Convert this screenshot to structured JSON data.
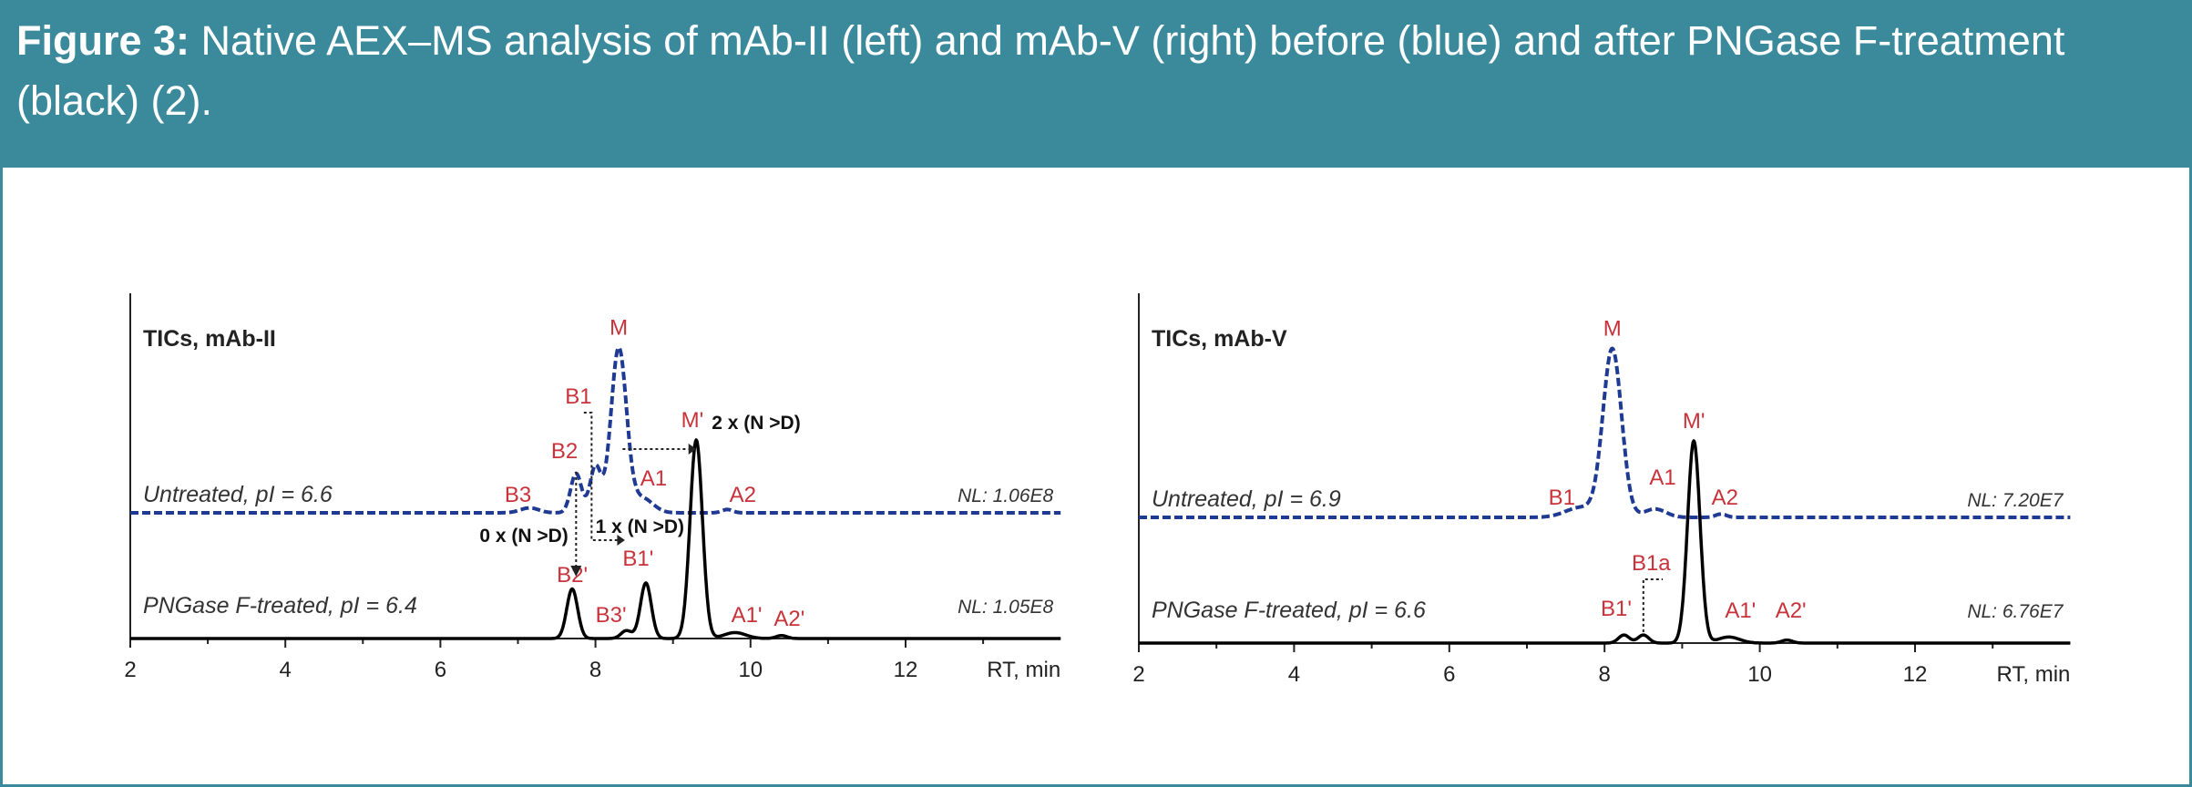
{
  "figure": {
    "label": "Figure 3:",
    "caption": " Native AEX–MS analysis of mAb-II (left) and mAb-V (right) before (blue) and after PNGase F-treatment (black) (2).",
    "accent_color": "#3b8a9c"
  },
  "chart_data": [
    {
      "type": "line",
      "title": "TICs, mAb-II",
      "xlabel": "RT, min",
      "xlim": [
        2,
        14
      ],
      "xticks": [
        "2",
        "4",
        "6",
        "8",
        "10",
        "12"
      ],
      "series": [
        {
          "name": "Untreated, pI = 6.6",
          "normalization": "NL: 1.06E8",
          "color": "#1f3a93",
          "style": "dashed",
          "peaks": [
            {
              "label": "M",
              "rt": 8.3,
              "rel_intensity": 100
            },
            {
              "label": "B1",
              "rt": 8.0,
              "rel_intensity": 28
            },
            {
              "label": "B2",
              "rt": 7.75,
              "rel_intensity": 24
            },
            {
              "label": "B3",
              "rt": 7.15,
              "rel_intensity": 3
            },
            {
              "label": "A1",
              "rt": 8.6,
              "rel_intensity": 9
            },
            {
              "label": "A2",
              "rt": 9.7,
              "rel_intensity": 2
            }
          ]
        },
        {
          "name": "PNGase F-treated, pI = 6.4",
          "normalization": "NL: 1.05E8",
          "color": "#000000",
          "style": "solid",
          "peaks": [
            {
              "label": "M'",
              "rt": 9.3,
              "rel_intensity": 100
            },
            {
              "label": "B1'",
              "rt": 8.65,
              "rel_intensity": 28
            },
            {
              "label": "B2'",
              "rt": 7.7,
              "rel_intensity": 25
            },
            {
              "label": "B3'",
              "rt": 8.4,
              "rel_intensity": 4
            },
            {
              "label": "A1'",
              "rt": 9.8,
              "rel_intensity": 3
            },
            {
              "label": "A2'",
              "rt": 10.4,
              "rel_intensity": 1.5
            }
          ]
        }
      ],
      "annotations": [
        "0 x (N >D)",
        "1 x (N >D)",
        "2 x (N >D)"
      ]
    },
    {
      "type": "line",
      "title": "TICs, mAb-V",
      "xlabel": "RT, min",
      "xlim": [
        2,
        14
      ],
      "xticks": [
        "2",
        "4",
        "6",
        "8",
        "10",
        "12"
      ],
      "series": [
        {
          "name": "Untreated, pI = 6.9",
          "normalization": "NL: 7.20E7",
          "color": "#1f3a93",
          "style": "dashed",
          "peaks": [
            {
              "label": "M",
              "rt": 8.1,
              "rel_intensity": 100
            },
            {
              "label": "B1",
              "rt": 7.7,
              "rel_intensity": 6
            },
            {
              "label": "A1",
              "rt": 8.65,
              "rel_intensity": 5
            },
            {
              "label": "A2",
              "rt": 9.5,
              "rel_intensity": 2
            }
          ]
        },
        {
          "name": "PNGase F-treated, pI = 6.6",
          "normalization": "NL: 6.76E7",
          "color": "#000000",
          "style": "solid",
          "peaks": [
            {
              "label": "M'",
              "rt": 9.15,
              "rel_intensity": 100
            },
            {
              "label": "B1'",
              "rt": 8.25,
              "rel_intensity": 4
            },
            {
              "label": "B1a",
              "rt": 8.5,
              "rel_intensity": 4
            },
            {
              "label": "A1'",
              "rt": 9.6,
              "rel_intensity": 3
            },
            {
              "label": "A2'",
              "rt": 10.35,
              "rel_intensity": 1.5
            }
          ]
        }
      ],
      "annotations": []
    }
  ]
}
